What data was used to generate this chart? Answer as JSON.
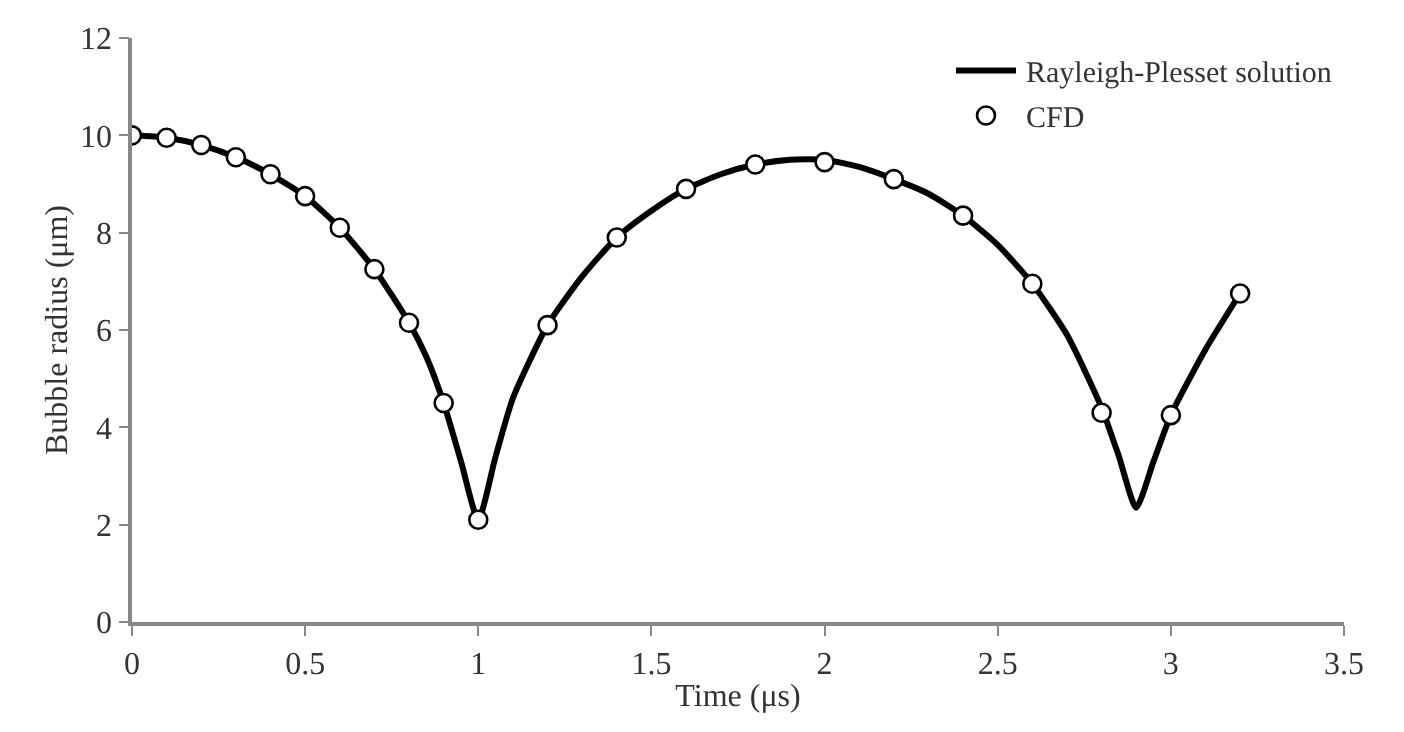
{
  "chart_data": {
    "type": "line",
    "xlabel": "Time (μs)",
    "ylabel": "Bubble radius (μm)",
    "xlim": [
      0,
      3.5
    ],
    "xticks": [
      0,
      0.5,
      1,
      1.5,
      2,
      2.5,
      3,
      3.5
    ],
    "ylim": [
      0,
      12
    ],
    "yticks": [
      0,
      2,
      4,
      6,
      8,
      10,
      12
    ],
    "legend": "top right",
    "series": [
      {
        "name": "Rayleigh-Plesset solution",
        "color": "#000000",
        "marker": "none",
        "line_style": "solid",
        "x": [
          0,
          0.1,
          0.2,
          0.3,
          0.4,
          0.5,
          0.6,
          0.7,
          0.8,
          0.85,
          0.9,
          0.95,
          1.0,
          1.05,
          1.1,
          1.2,
          1.3,
          1.4,
          1.5,
          1.6,
          1.7,
          1.8,
          1.9,
          2.0,
          2.1,
          2.2,
          2.3,
          2.4,
          2.5,
          2.6,
          2.7,
          2.8,
          2.85,
          2.9,
          2.95,
          3.0,
          3.1,
          3.2
        ],
        "values": [
          10,
          9.95,
          9.8,
          9.55,
          9.2,
          8.75,
          8.1,
          7.25,
          6.15,
          5.45,
          4.5,
          3.3,
          2.1,
          3.4,
          4.6,
          6.1,
          7.1,
          7.9,
          8.45,
          8.9,
          9.2,
          9.4,
          9.5,
          9.5,
          9.35,
          9.1,
          8.8,
          8.35,
          7.75,
          6.95,
          5.9,
          4.4,
          3.4,
          2.35,
          3.3,
          4.25,
          5.6,
          6.75
        ]
      },
      {
        "name": "CFD",
        "type": "scatter",
        "color": "#000000",
        "marker": "circle",
        "x": [
          0,
          0.1,
          0.2,
          0.3,
          0.4,
          0.5,
          0.6,
          0.7,
          0.8,
          0.9,
          1.0,
          1.2,
          1.4,
          1.6,
          1.8,
          2.0,
          2.2,
          2.4,
          2.6,
          2.8,
          3.0,
          3.2
        ],
        "values": [
          10,
          9.95,
          9.8,
          9.55,
          9.2,
          8.75,
          8.1,
          7.25,
          6.15,
          4.5,
          2.1,
          6.1,
          7.9,
          8.9,
          9.4,
          9.45,
          9.1,
          8.35,
          6.95,
          4.3,
          4.25,
          6.75
        ]
      }
    ]
  }
}
